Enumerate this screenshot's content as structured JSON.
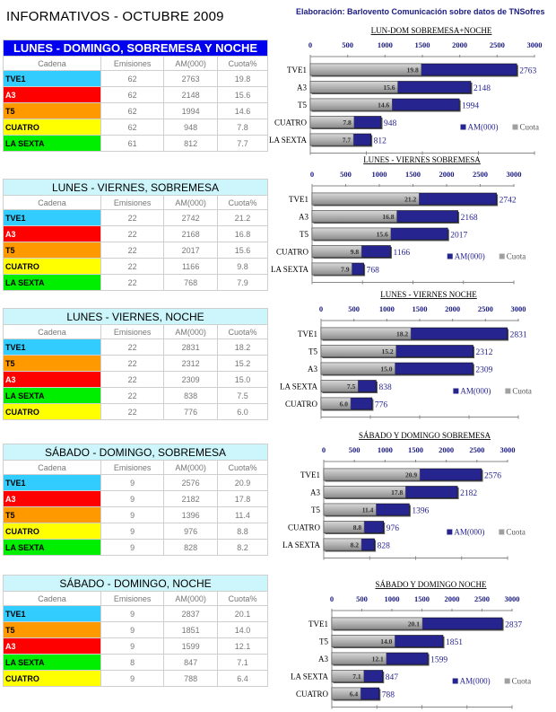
{
  "title": "INFORMATIVOS - OCTUBRE 2009",
  "credit": "Elaboración: Barlovento Comunicación sobre datos de TNSofres",
  "columns": [
    "Cadena",
    "Emisiones",
    "AM(000)",
    "Cuota%"
  ],
  "channel_colors": {
    "TVE1": "#33ccff",
    "A3": "#ff0000",
    "T5": "#ff9900",
    "CUATRO": "#ffff00",
    "LA SEXTA": "#00ee00"
  },
  "channel_text_colors": {
    "TVE1": "#000000",
    "A3": "#ffffff",
    "T5": "#000000",
    "CUATRO": "#000000",
    "LA SEXTA": "#000000"
  },
  "colors": {
    "am_bar": "#26248f",
    "cuota_bar": "#b0b0b0",
    "axis_label": "#1a1a80"
  },
  "legend": {
    "am": "AM(000)",
    "cuota": "Cuota"
  },
  "tables": [
    {
      "title": "LUNES - DOMINGO, SOBREMESA Y NOCHE",
      "rows": [
        [
          "TVE1",
          "62",
          "2763",
          "19.8"
        ],
        [
          "A3",
          "62",
          "2148",
          "15.6"
        ],
        [
          "T5",
          "62",
          "1994",
          "14.6"
        ],
        [
          "CUATRO",
          "62",
          "948",
          "7.8"
        ],
        [
          "LA SEXTA",
          "61",
          "812",
          "7.7"
        ]
      ]
    },
    {
      "title": "LUNES - VIERNES, SOBREMESA",
      "rows": [
        [
          "TVE1",
          "22",
          "2742",
          "21.2"
        ],
        [
          "A3",
          "22",
          "2168",
          "16.8"
        ],
        [
          "T5",
          "22",
          "2017",
          "15.6"
        ],
        [
          "CUATRO",
          "22",
          "1166",
          "9.8"
        ],
        [
          "LA SEXTA",
          "22",
          "768",
          "7.9"
        ]
      ]
    },
    {
      "title": "LUNES - VIERNES, NOCHE",
      "rows": [
        [
          "TVE1",
          "22",
          "2831",
          "18.2"
        ],
        [
          "T5",
          "22",
          "2312",
          "15.2"
        ],
        [
          "A3",
          "22",
          "2309",
          "15.0"
        ],
        [
          "LA SEXTA",
          "22",
          "838",
          "7.5"
        ],
        [
          "CUATRO",
          "22",
          "776",
          "6.0"
        ]
      ]
    },
    {
      "title": "SÁBADO - DOMINGO, SOBREMESA",
      "rows": [
        [
          "TVE1",
          "9",
          "2576",
          "20.9"
        ],
        [
          "A3",
          "9",
          "2182",
          "17.8"
        ],
        [
          "T5",
          "9",
          "1396",
          "11.4"
        ],
        [
          "CUATRO",
          "9",
          "976",
          "8.8"
        ],
        [
          "LA SEXTA",
          "9",
          "828",
          "8.2"
        ]
      ]
    },
    {
      "title": "SÁBADO - DOMINGO, NOCHE",
      "rows": [
        [
          "TVE1",
          "9",
          "2837",
          "20.1"
        ],
        [
          "T5",
          "9",
          "1851",
          "14.0"
        ],
        [
          "A3",
          "9",
          "1599",
          "12.1"
        ],
        [
          "LA SEXTA",
          "8",
          "847",
          "7.1"
        ],
        [
          "CUATRO",
          "9",
          "788",
          "6.4"
        ]
      ]
    }
  ],
  "chart_data": [
    {
      "type": "bar",
      "orientation": "horizontal",
      "title": "LUN-DOM SOBREMESA+NOCHE",
      "categories": [
        "TVE1",
        "A3",
        "T5",
        "CUATRO",
        "LA SEXTA"
      ],
      "series": [
        {
          "name": "AM(000)",
          "axis": "top",
          "values": [
            2763,
            2148,
            1994,
            948,
            812
          ]
        },
        {
          "name": "Cuota",
          "axis": "bottom",
          "values": [
            19.8,
            15.6,
            14.6,
            7.8,
            7.7
          ]
        }
      ],
      "top_axis": {
        "range": [
          0,
          3000
        ],
        "ticks": [
          "0",
          "500",
          "1000",
          "1500",
          "2000",
          "2500",
          "3000"
        ]
      },
      "bottom_axis": {
        "range": [
          0,
          40
        ],
        "ticks": [
          "0.0",
          "10.0",
          "20.0",
          "30.0",
          "40.0"
        ]
      },
      "legend": "bottom-right"
    },
    {
      "type": "bar",
      "orientation": "horizontal",
      "title": "LUNES - VIERNES SOBREMESA",
      "categories": [
        "TVE1",
        "A3",
        "T5",
        "CUATRO",
        "LA SEXTA"
      ],
      "series": [
        {
          "name": "AM(000)",
          "axis": "top",
          "values": [
            2742,
            2168,
            2017,
            1166,
            768
          ]
        },
        {
          "name": "Cuota",
          "axis": "bottom",
          "values": [
            21.2,
            16.8,
            15.6,
            9.8,
            7.9
          ]
        }
      ],
      "top_axis": {
        "range": [
          0,
          3000
        ],
        "ticks": [
          "0",
          "500",
          "1000",
          "1500",
          "2000",
          "2500",
          "3000"
        ]
      },
      "bottom_axis": {
        "range": [
          0,
          40
        ],
        "ticks": [
          "0.0",
          "10.0",
          "20.0",
          "30.0",
          "40.0"
        ]
      },
      "legend": "bottom-right"
    },
    {
      "type": "bar",
      "orientation": "horizontal",
      "title": "LUNES - VIERNES  NOCHE",
      "categories": [
        "TVE1",
        "T5",
        "A3",
        "LA SEXTA",
        "CUATRO"
      ],
      "series": [
        {
          "name": "AM(000)",
          "axis": "top",
          "values": [
            2831,
            2312,
            2309,
            838,
            776
          ]
        },
        {
          "name": "Cuota",
          "axis": "bottom",
          "values": [
            18.2,
            15.2,
            15.0,
            7.5,
            6.0
          ]
        }
      ],
      "top_axis": {
        "range": [
          0,
          3000
        ],
        "ticks": [
          "0",
          "500",
          "1000",
          "1500",
          "2000",
          "2500",
          "3000"
        ]
      },
      "bottom_axis": {
        "range": [
          0,
          40
        ],
        "ticks": [
          "0.0",
          "10.0",
          "20.0",
          "30.0",
          "40.0"
        ]
      },
      "legend": "bottom-right"
    },
    {
      "type": "bar",
      "orientation": "horizontal",
      "title": "SÁBADO Y DOMINGO SOBREMESA",
      "categories": [
        "TVE1",
        "A3",
        "T5",
        "CUATRO",
        "LA SEXTA"
      ],
      "series": [
        {
          "name": "AM(000)",
          "axis": "top",
          "values": [
            2576,
            2182,
            1396,
            976,
            828
          ]
        },
        {
          "name": "Cuota",
          "axis": "bottom",
          "values": [
            20.9,
            17.8,
            11.4,
            8.8,
            8.2
          ]
        }
      ],
      "top_axis": {
        "range": [
          0,
          3000
        ],
        "ticks": [
          "0",
          "500",
          "1000",
          "1500",
          "2000",
          "2500",
          "3000"
        ]
      },
      "bottom_axis": {
        "range": [
          0,
          40
        ],
        "ticks": [
          "0.0",
          "10.0",
          "20.0",
          "30.0",
          "40.0"
        ]
      },
      "legend": "bottom-right"
    },
    {
      "type": "bar",
      "orientation": "horizontal",
      "title": "SÁBADO Y DOMINGO  NOCHE",
      "categories": [
        "TVE1",
        "T5",
        "A3",
        "LA SEXTA",
        "CUATRO"
      ],
      "series": [
        {
          "name": "AM(000)",
          "axis": "top",
          "values": [
            2837,
            1851,
            1599,
            847,
            788
          ]
        },
        {
          "name": "Cuota",
          "axis": "bottom",
          "values": [
            20.1,
            14.0,
            12.1,
            7.1,
            6.4
          ]
        }
      ],
      "top_axis": {
        "range": [
          0,
          3000
        ],
        "ticks": [
          "0",
          "500",
          "1000",
          "1500",
          "2000",
          "2500",
          "3000"
        ]
      },
      "bottom_axis": {
        "range": [
          0,
          40
        ],
        "ticks": [
          "0.0",
          "10.0",
          "20.0",
          "30.0",
          "40.0"
        ]
      },
      "legend": "bottom-right"
    }
  ]
}
